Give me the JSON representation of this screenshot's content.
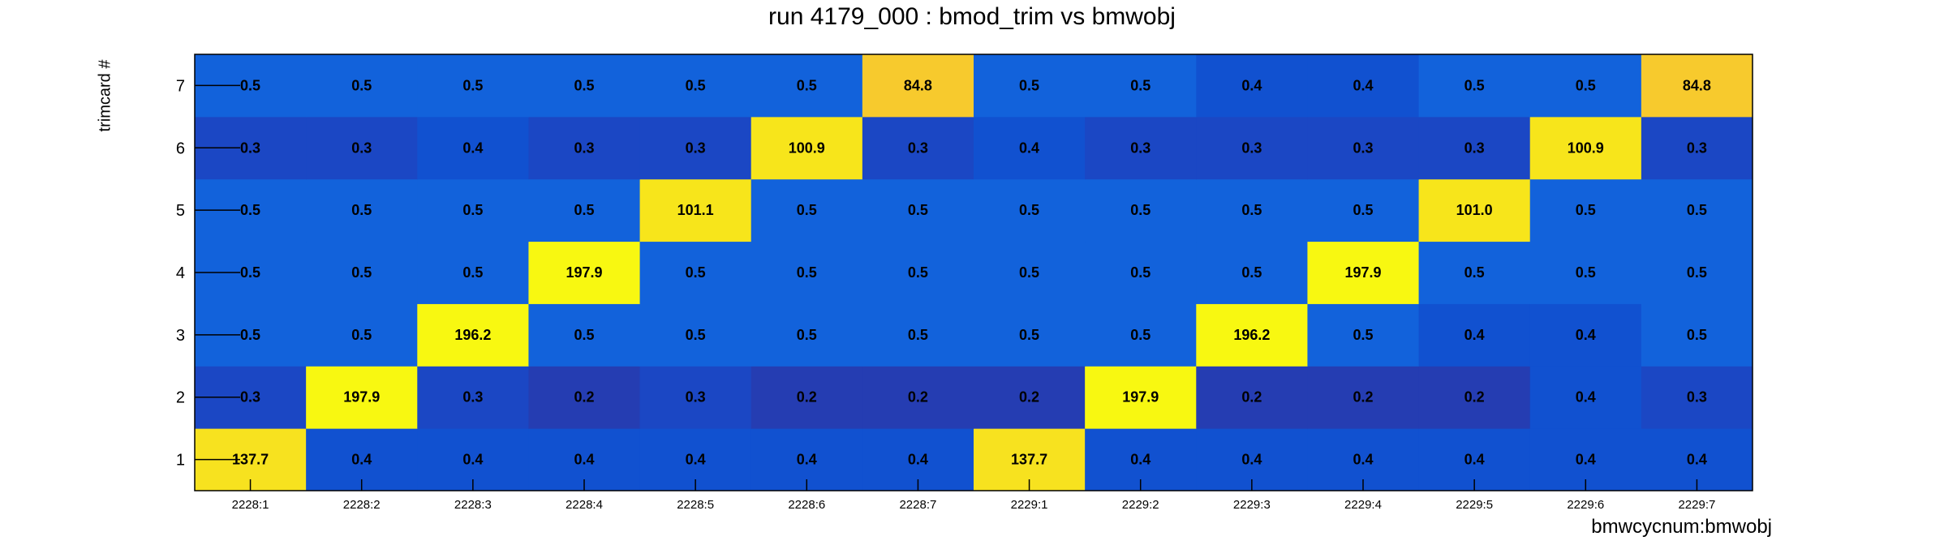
{
  "chart_data": {
    "type": "heatmap",
    "title": "run 4179_000 : bmod_trim vs bmwobj",
    "xlabel": "bmwcycnum:bmwobj",
    "ylabel": "trimcard #",
    "x_categories": [
      "2228:1",
      "2228:2",
      "2228:3",
      "2228:4",
      "2228:5",
      "2228:6",
      "2228:7",
      "2229:1",
      "2229:2",
      "2229:3",
      "2229:4",
      "2229:5",
      "2229:6",
      "2229:7"
    ],
    "y_categories": [
      "1",
      "2",
      "3",
      "4",
      "5",
      "6",
      "7"
    ],
    "values": [
      [
        137.7,
        0.4,
        0.4,
        0.4,
        0.4,
        0.4,
        0.4,
        137.7,
        0.4,
        0.4,
        0.4,
        0.4,
        0.4,
        0.4
      ],
      [
        0.3,
        197.9,
        0.3,
        0.2,
        0.3,
        0.2,
        0.2,
        0.2,
        197.9,
        0.2,
        0.2,
        0.2,
        0.4,
        0.3
      ],
      [
        0.5,
        0.5,
        196.2,
        0.5,
        0.5,
        0.5,
        0.5,
        0.5,
        0.5,
        196.2,
        0.5,
        0.4,
        0.4,
        0.5
      ],
      [
        0.5,
        0.5,
        0.5,
        197.9,
        0.5,
        0.5,
        0.5,
        0.5,
        0.5,
        0.5,
        197.9,
        0.5,
        0.5,
        0.5
      ],
      [
        0.5,
        0.5,
        0.5,
        0.5,
        101.1,
        0.5,
        0.5,
        0.5,
        0.5,
        0.5,
        0.5,
        101.0,
        0.5,
        0.5
      ],
      [
        0.3,
        0.3,
        0.4,
        0.3,
        0.3,
        100.9,
        0.3,
        0.4,
        0.3,
        0.3,
        0.3,
        0.3,
        100.9,
        0.3
      ],
      [
        0.5,
        0.5,
        0.5,
        0.5,
        0.5,
        0.5,
        84.8,
        0.5,
        0.5,
        0.4,
        0.4,
        0.5,
        0.5,
        84.8
      ]
    ],
    "colors": {
      "value_84.8": "#f7ca2d",
      "value_101": "#f7e51b",
      "value_137.7": "#f7e21f",
      "value_196plus": "#f8f811",
      "low_0.5": "#1262db",
      "low_0.4": "#1151d0",
      "low_0.3": "#1b47c4",
      "low_0.2": "#253db2"
    }
  }
}
